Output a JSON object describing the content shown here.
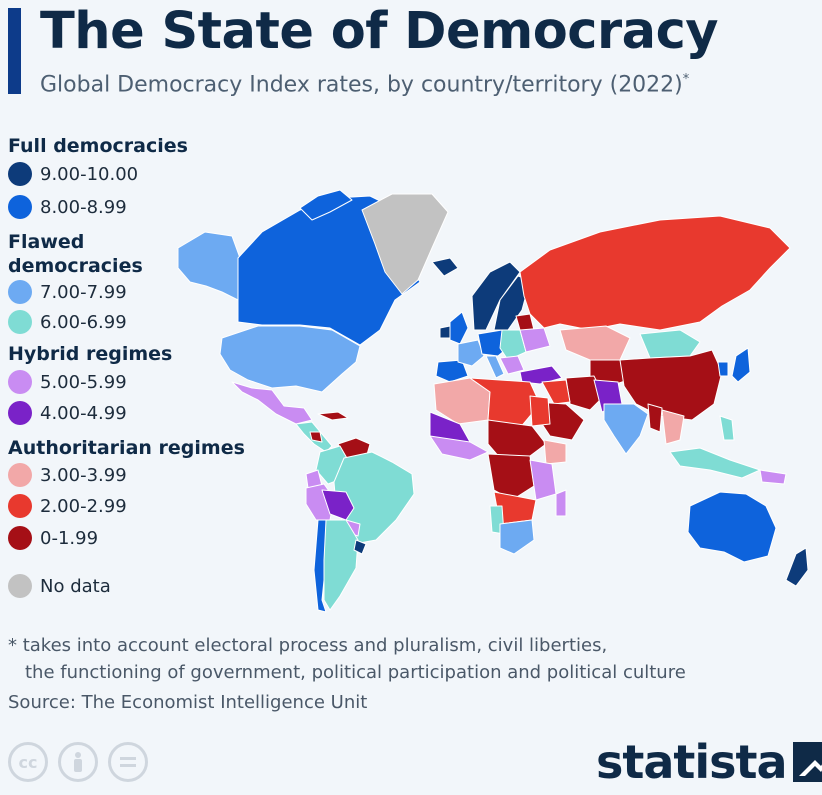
{
  "header": {
    "title": "The State of Democracy",
    "subtitle": "Global Democracy Index rates, by country/territory (2022)",
    "subtitle_mark": "*"
  },
  "legend": {
    "groups": [
      {
        "title": "Full democracies",
        "items": [
          {
            "label": "9.00-10.00",
            "color": "#0d3b7a"
          },
          {
            "label": "8.00-8.99",
            "color": "#0e63dc"
          }
        ]
      },
      {
        "title": "Flawed democracies",
        "title_lines": [
          "Flawed",
          "democracies"
        ],
        "items": [
          {
            "label": "7.00-7.99",
            "color": "#6daaf2"
          },
          {
            "label": "6.00-6.99",
            "color": "#7fdcd4"
          }
        ]
      },
      {
        "title": "Hybrid regimes",
        "items": [
          {
            "label": "5.00-5.99",
            "color": "#c98cf2"
          },
          {
            "label": "4.00-4.99",
            "color": "#7a22c8"
          }
        ]
      },
      {
        "title": "Authoritarian regimes",
        "items": [
          {
            "label": "3.00-3.99",
            "color": "#f2a8a8"
          },
          {
            "label": "2.00-2.99",
            "color": "#e8392e"
          },
          {
            "label": "0-1.99",
            "color": "#a50f16"
          }
        ]
      }
    ],
    "no_data": {
      "label": "No data",
      "color": "#c2c2c2"
    }
  },
  "map": {
    "background": "#f2f6fa",
    "border_color": "#ffffff"
  },
  "footnote": {
    "line1": "* takes into account electoral process and pluralism, civil liberties,",
    "line2": "the functioning of government, political participation and political culture"
  },
  "source": "Source: The Economist Intelligence Unit",
  "license_icons": [
    "cc-icon",
    "attribution-icon",
    "no-derivatives-icon"
  ],
  "brand": {
    "name": "statista"
  }
}
